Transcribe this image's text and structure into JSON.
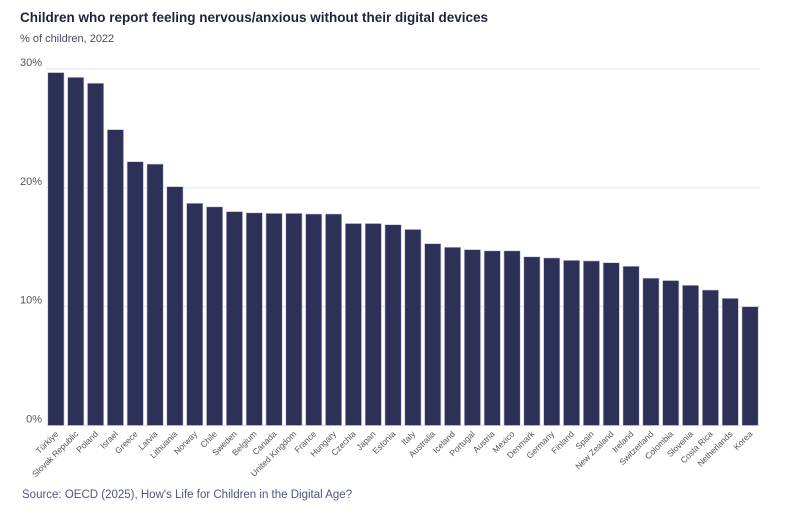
{
  "chart_data": {
    "type": "bar",
    "title": "Children who report feeling nervous/anxious without their digital devices",
    "subtitle": "% of children, 2022",
    "source": "Source: OECD (2025), How's Life for Children in the Digital Age?",
    "categories": [
      "Türkiye",
      "Slovak Republic",
      "Poland",
      "Israel",
      "Greece",
      "Latvia",
      "Lithuania",
      "Norway",
      "Chile",
      "Sweden",
      "Belgium",
      "Canada",
      "United Kingdom",
      "France",
      "Hungary",
      "Czechia",
      "Japan",
      "Estonia",
      "Italy",
      "Australia",
      "Iceland",
      "Portugal",
      "Austria",
      "Mexico",
      "Denmark",
      "Germany",
      "Finland",
      "Spain",
      "New Zealand",
      "Ireland",
      "Switzerland",
      "Colombia",
      "Slovenia",
      "Costa Rica",
      "Netherlands",
      "Korea"
    ],
    "values": [
      29.7,
      29.3,
      28.8,
      24.9,
      22.2,
      22.0,
      20.1,
      18.7,
      18.4,
      18.0,
      17.9,
      17.85,
      17.85,
      17.8,
      17.8,
      17.0,
      17.0,
      16.9,
      16.5,
      15.3,
      15.0,
      14.8,
      14.7,
      14.7,
      14.2,
      14.1,
      13.9,
      13.85,
      13.7,
      13.4,
      12.4,
      12.2,
      11.8,
      11.4,
      10.7,
      10.0
    ],
    "ylim": [
      0,
      30
    ],
    "yticks": [
      0,
      10,
      20,
      30
    ],
    "ytick_labels": [
      "0%",
      "10%",
      "20%",
      "30%"
    ],
    "xlabel": "",
    "ylabel": "",
    "grid": true,
    "bar_color": "#2e3157",
    "grid_color": "#e3e4ee"
  }
}
